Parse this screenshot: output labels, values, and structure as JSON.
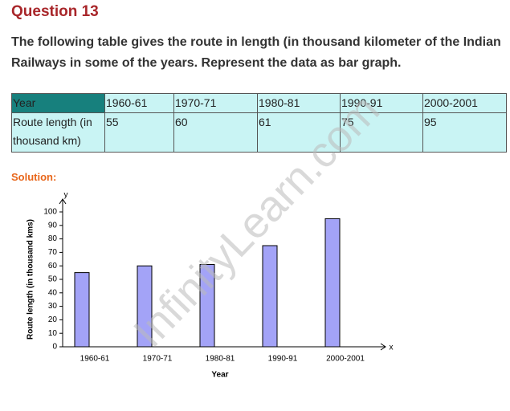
{
  "header": {
    "title": "Question 13"
  },
  "question": "The following table gives the route in length (in thousand kilometer of the Indian Railways in some of the years. Represent the data as bar graph.",
  "table": {
    "rows": [
      [
        "Year",
        "1960-61",
        "1970-71",
        "1980-81",
        "1990-91",
        "2000-2001"
      ],
      [
        "Route length (in thousand km)",
        "55",
        "60",
        "61",
        "75",
        "95"
      ]
    ]
  },
  "solution_label": "Solution:",
  "chart_data": {
    "type": "bar",
    "categories": [
      "1960-61",
      "1970-71",
      "1980-81",
      "1990-91",
      "2000-2001"
    ],
    "values": [
      55,
      60,
      61,
      75,
      95
    ],
    "color": "#a3a3f7",
    "ylim": [
      0,
      100
    ],
    "yticks": [
      0,
      10,
      20,
      30,
      40,
      50,
      60,
      70,
      80,
      90,
      100
    ],
    "x_axis_label": "Year",
    "y_axis_label": "Route length (in thousand kms)",
    "x_axis_name": "x",
    "y_axis_name": "y"
  },
  "watermark": "InfinityLearn.com"
}
